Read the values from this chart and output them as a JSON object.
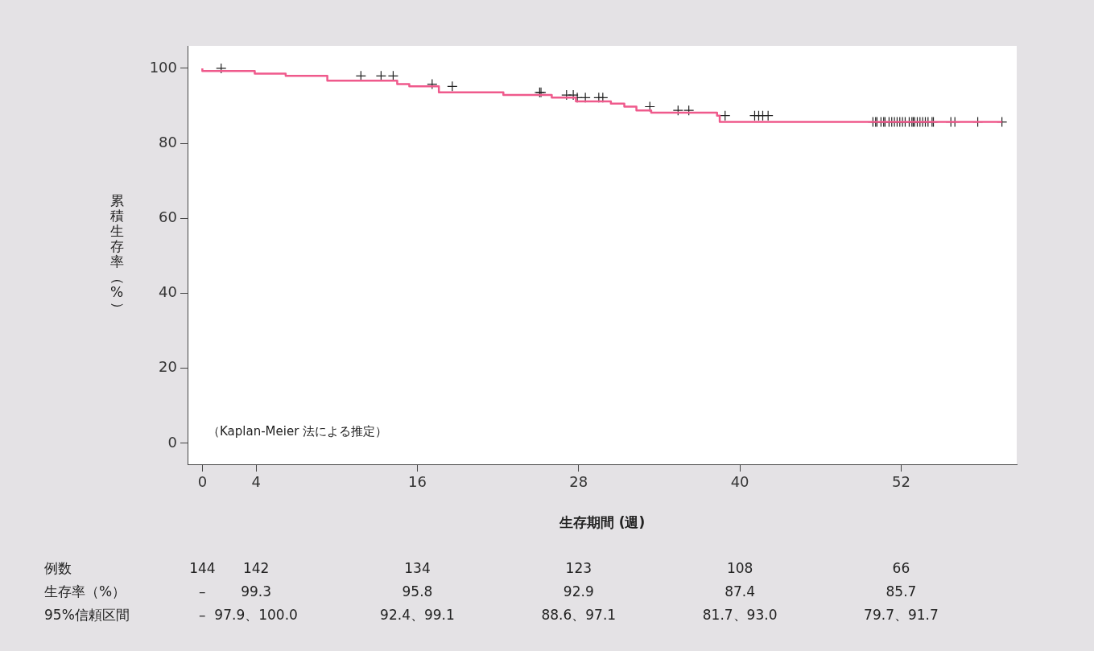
{
  "chart_data": {
    "type": "step",
    "xlabel": "生存期間 (週)",
    "ylabel": "累積生存率（%）",
    "xlim": [
      -1.1,
      60.6
    ],
    "xticks": [
      0,
      4,
      16,
      28,
      40,
      52
    ],
    "ylim": [
      -5.6,
      106
    ],
    "yticks": [
      0,
      20,
      40,
      60,
      80,
      100
    ],
    "grid": false,
    "legend": false,
    "line_style": "solid",
    "series": [
      {
        "color": "#ef5a8c",
        "x": [
          0,
          3.9,
          6.2,
          9.3,
          14.5,
          15.4,
          17.6,
          22.4,
          26.0,
          27.8,
          30.4,
          31.4,
          32.3,
          33.4,
          38.3,
          38.5,
          48.8,
          59.5
        ],
        "values": [
          100,
          99.3,
          98.6,
          98.0,
          96.7,
          95.8,
          95.2,
          93.6,
          92.9,
          92.2,
          91.2,
          90.6,
          89.8,
          88.8,
          88.2,
          87.4,
          85.7,
          85.7
        ]
      },
      {
        "type": "scatter",
        "marker": "cross",
        "color": "#222222",
        "x": [
          1.4,
          11.8,
          13.3,
          14.2,
          17.1,
          18.6,
          25.1,
          25.2,
          27.1,
          27.6,
          27.9,
          28.5,
          29.5,
          29.8,
          33.3,
          35.4,
          36.2,
          38.9,
          41.1,
          41.4,
          41.7,
          42.1,
          49.9,
          50.1,
          50.2,
          50.5,
          50.7,
          50.8,
          51.1,
          51.3,
          51.5,
          51.7,
          51.9,
          52.1,
          52.3,
          52.6,
          52.8,
          52.9,
          53.0,
          53.2,
          53.4,
          53.6,
          53.8,
          54.0,
          54.3,
          54.4,
          55.7,
          56.0,
          57.7,
          59.5
        ],
        "values": [
          100,
          98.0,
          98.0,
          98.0,
          95.8,
          95.2,
          93.6,
          93.6,
          92.9,
          92.9,
          92.2,
          92.2,
          92.2,
          92.2,
          89.8,
          88.8,
          88.8,
          87.4,
          87.4,
          87.4,
          87.4,
          87.4,
          85.7,
          85.7,
          85.7,
          85.7,
          85.7,
          85.7,
          85.7,
          85.7,
          85.7,
          85.7,
          85.7,
          85.7,
          85.7,
          85.7,
          85.7,
          85.7,
          85.7,
          85.7,
          85.7,
          85.7,
          85.7,
          85.7,
          85.7,
          85.7,
          85.7,
          85.7,
          85.7,
          85.7
        ]
      }
    ],
    "annotations": [
      "（Kaplan-Meier 法による推定）",
      "例数",
      "144",
      "142",
      "134",
      "123",
      "108",
      "66",
      "生存率（%）",
      "–",
      "99.3",
      "95.8",
      "92.9",
      "87.4",
      "85.7",
      "95%信頼区間",
      "–",
      "97.9、100.0",
      "92.4、99.1",
      "88.6、97.1",
      "81.7、93.0",
      "79.7、91.7"
    ]
  }
}
